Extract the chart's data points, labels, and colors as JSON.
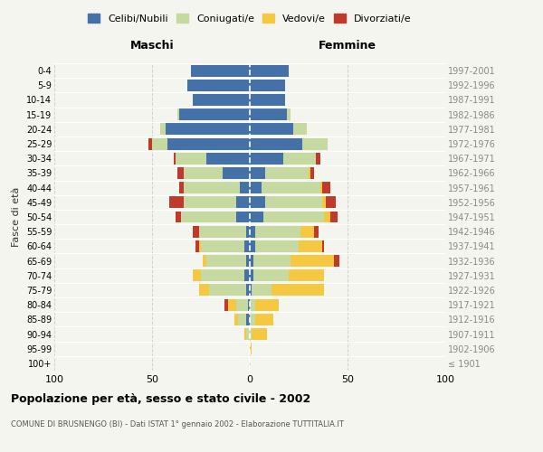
{
  "age_groups": [
    "100+",
    "95-99",
    "90-94",
    "85-89",
    "80-84",
    "75-79",
    "70-74",
    "65-69",
    "60-64",
    "55-59",
    "50-54",
    "45-49",
    "40-44",
    "35-39",
    "30-34",
    "25-29",
    "20-24",
    "15-19",
    "10-14",
    "5-9",
    "0-4"
  ],
  "birth_years": [
    "≤ 1901",
    "1902-1906",
    "1907-1911",
    "1912-1916",
    "1917-1921",
    "1922-1926",
    "1927-1931",
    "1932-1936",
    "1937-1941",
    "1942-1946",
    "1947-1951",
    "1952-1956",
    "1957-1961",
    "1962-1966",
    "1967-1971",
    "1972-1976",
    "1977-1981",
    "1982-1986",
    "1987-1991",
    "1992-1996",
    "1997-2001"
  ],
  "maschi": {
    "celibi": [
      0,
      0,
      0,
      2,
      1,
      2,
      3,
      2,
      3,
      2,
      7,
      7,
      5,
      14,
      22,
      42,
      43,
      36,
      29,
      32,
      30
    ],
    "coniugati": [
      0,
      0,
      2,
      4,
      6,
      19,
      22,
      20,
      22,
      24,
      28,
      27,
      29,
      20,
      16,
      8,
      3,
      1,
      0,
      0,
      0
    ],
    "vedovi": [
      0,
      0,
      1,
      2,
      4,
      5,
      4,
      2,
      1,
      0,
      0,
      0,
      0,
      0,
      0,
      0,
      0,
      0,
      0,
      0,
      0
    ],
    "divorziati": [
      0,
      0,
      0,
      0,
      2,
      0,
      0,
      0,
      2,
      3,
      3,
      7,
      2,
      3,
      1,
      2,
      0,
      0,
      0,
      0,
      0
    ]
  },
  "femmine": {
    "nubili": [
      0,
      0,
      0,
      0,
      0,
      1,
      2,
      2,
      3,
      3,
      7,
      8,
      6,
      8,
      17,
      27,
      22,
      19,
      18,
      18,
      20
    ],
    "coniugate": [
      0,
      0,
      1,
      3,
      3,
      10,
      18,
      19,
      22,
      23,
      31,
      29,
      30,
      22,
      17,
      13,
      7,
      2,
      0,
      0,
      0
    ],
    "vedove": [
      0,
      1,
      8,
      9,
      12,
      27,
      18,
      22,
      12,
      7,
      3,
      2,
      1,
      1,
      0,
      0,
      0,
      0,
      0,
      0,
      0
    ],
    "divorziate": [
      0,
      0,
      0,
      0,
      0,
      0,
      0,
      3,
      1,
      2,
      4,
      5,
      4,
      2,
      2,
      0,
      0,
      0,
      0,
      0,
      0
    ]
  },
  "colors": {
    "celibi_nubili": "#4472a8",
    "coniugati": "#c5d9a0",
    "vedovi": "#f5c842",
    "divorziati": "#c0392b"
  },
  "title": "Popolazione per età, sesso e stato civile - 2002",
  "subtitle": "COMUNE DI BRUSNENGO (BI) - Dati ISTAT 1° gennaio 2002 - Elaborazione TUTTITALIA.IT",
  "xlabel_left": "Maschi",
  "xlabel_right": "Femmine",
  "ylabel_left": "Fasce di età",
  "xlim": 100,
  "background_color": "#f5f5f0"
}
